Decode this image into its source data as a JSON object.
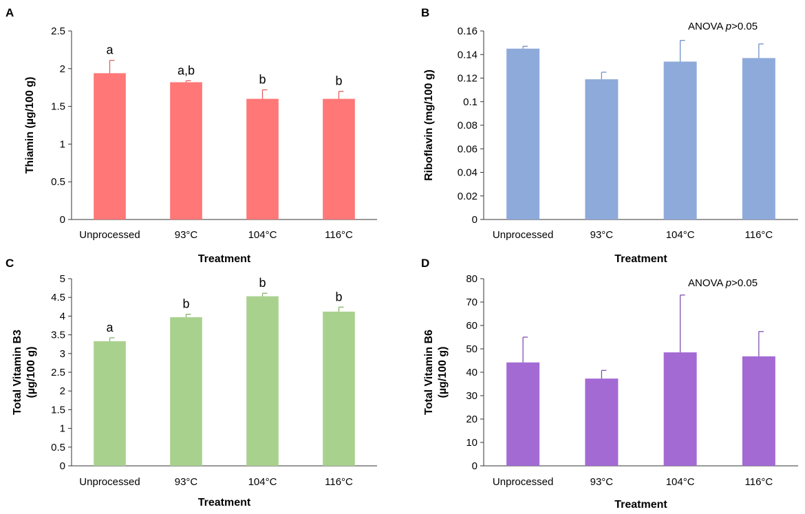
{
  "chart_data": [
    {
      "panel": "A",
      "type": "bar",
      "title": "",
      "xlabel": "Treatment",
      "ylabel": "Thiamin (µg/100 g)",
      "ylabel_lines": [
        "Thiamin (µg/100 g)"
      ],
      "categories": [
        "Unprocessed",
        "93°C",
        "104°C",
        "116°C"
      ],
      "values": [
        1.94,
        1.82,
        1.6,
        1.6
      ],
      "errors": [
        0.17,
        0.02,
        0.12,
        0.1
      ],
      "sig_letters": [
        "a",
        "a,b",
        "b",
        "b"
      ],
      "ylim": [
        0,
        2.5
      ],
      "yticks": [
        "0",
        "0.5",
        "1",
        "1.5",
        "2",
        "2.5"
      ],
      "tick_values": [
        0,
        0.5,
        1,
        1.5,
        2,
        2.5
      ],
      "annotation": "",
      "annotation_italic": "",
      "annotation_suffix": "",
      "color": "#ff7777",
      "error_color": "#e06060"
    },
    {
      "panel": "B",
      "type": "bar",
      "title": "",
      "xlabel": "Treatment",
      "ylabel": "Riboflavin (mg/100 g)",
      "ylabel_lines": [
        "Riboflavin (mg/100 g)"
      ],
      "categories": [
        "Unprocessed",
        "93°C",
        "104°C",
        "116°C"
      ],
      "values": [
        0.145,
        0.119,
        0.134,
        0.137
      ],
      "errors": [
        0.002,
        0.006,
        0.018,
        0.012
      ],
      "sig_letters": [
        "",
        "",
        "",
        ""
      ],
      "ylim": [
        0,
        0.16
      ],
      "yticks": [
        "0",
        "0.02",
        "0.04",
        "0.06",
        "0.08",
        "0.1",
        "0.12",
        "0.14",
        "0.16"
      ],
      "tick_values": [
        0,
        0.02,
        0.04,
        0.06,
        0.08,
        0.1,
        0.12,
        0.14,
        0.16
      ],
      "annotation": "ANOVA ",
      "annotation_italic": "p",
      "annotation_suffix": ">0.05",
      "color": "#8eaadb",
      "error_color": "#6f8fc7"
    },
    {
      "panel": "C",
      "type": "bar",
      "title": "",
      "xlabel": "Treatment",
      "ylabel": "Total Vitamin B3 (µg/100 g)",
      "ylabel_lines": [
        "Total Vitamin B3",
        "(µg/100 g)"
      ],
      "categories": [
        "Unprocessed",
        "93°C",
        "104°C",
        "116°C"
      ],
      "values": [
        3.33,
        3.97,
        4.53,
        4.12
      ],
      "errors": [
        0.09,
        0.08,
        0.08,
        0.12
      ],
      "sig_letters": [
        "a",
        "b",
        "b",
        "b"
      ],
      "ylim": [
        0,
        5
      ],
      "yticks": [
        "0",
        "0.5",
        "1",
        "1.5",
        "2",
        "2.5",
        "3",
        "3.5",
        "4",
        "4.5",
        "5"
      ],
      "tick_values": [
        0,
        0.5,
        1,
        1.5,
        2,
        2.5,
        3,
        3.5,
        4,
        4.5,
        5
      ],
      "annotation": "",
      "annotation_italic": "",
      "annotation_suffix": "",
      "color": "#a9d18e",
      "error_color": "#84b368"
    },
    {
      "panel": "D",
      "type": "bar",
      "title": "",
      "xlabel": "Treatment",
      "ylabel": "Total Vitamin B6 (µg/100 g)",
      "ylabel_lines": [
        "Total Vitamin B6",
        "(µg/100 g)"
      ],
      "categories": [
        "Unprocessed",
        "93°C",
        "104°C",
        "116°C"
      ],
      "values": [
        44.2,
        37.3,
        48.5,
        46.8
      ],
      "errors": [
        10.8,
        3.5,
        24.5,
        10.6
      ],
      "sig_letters": [
        "",
        "",
        "",
        ""
      ],
      "ylim": [
        0,
        80
      ],
      "yticks": [
        "0",
        "10",
        "20",
        "30",
        "40",
        "50",
        "60",
        "70",
        "80"
      ],
      "tick_values": [
        0,
        10,
        20,
        30,
        40,
        50,
        60,
        70,
        80
      ],
      "annotation": "ANOVA ",
      "annotation_italic": "p",
      "annotation_suffix": ">0.05",
      "color": "#a36ad4",
      "error_color": "#7f4db0"
    }
  ]
}
